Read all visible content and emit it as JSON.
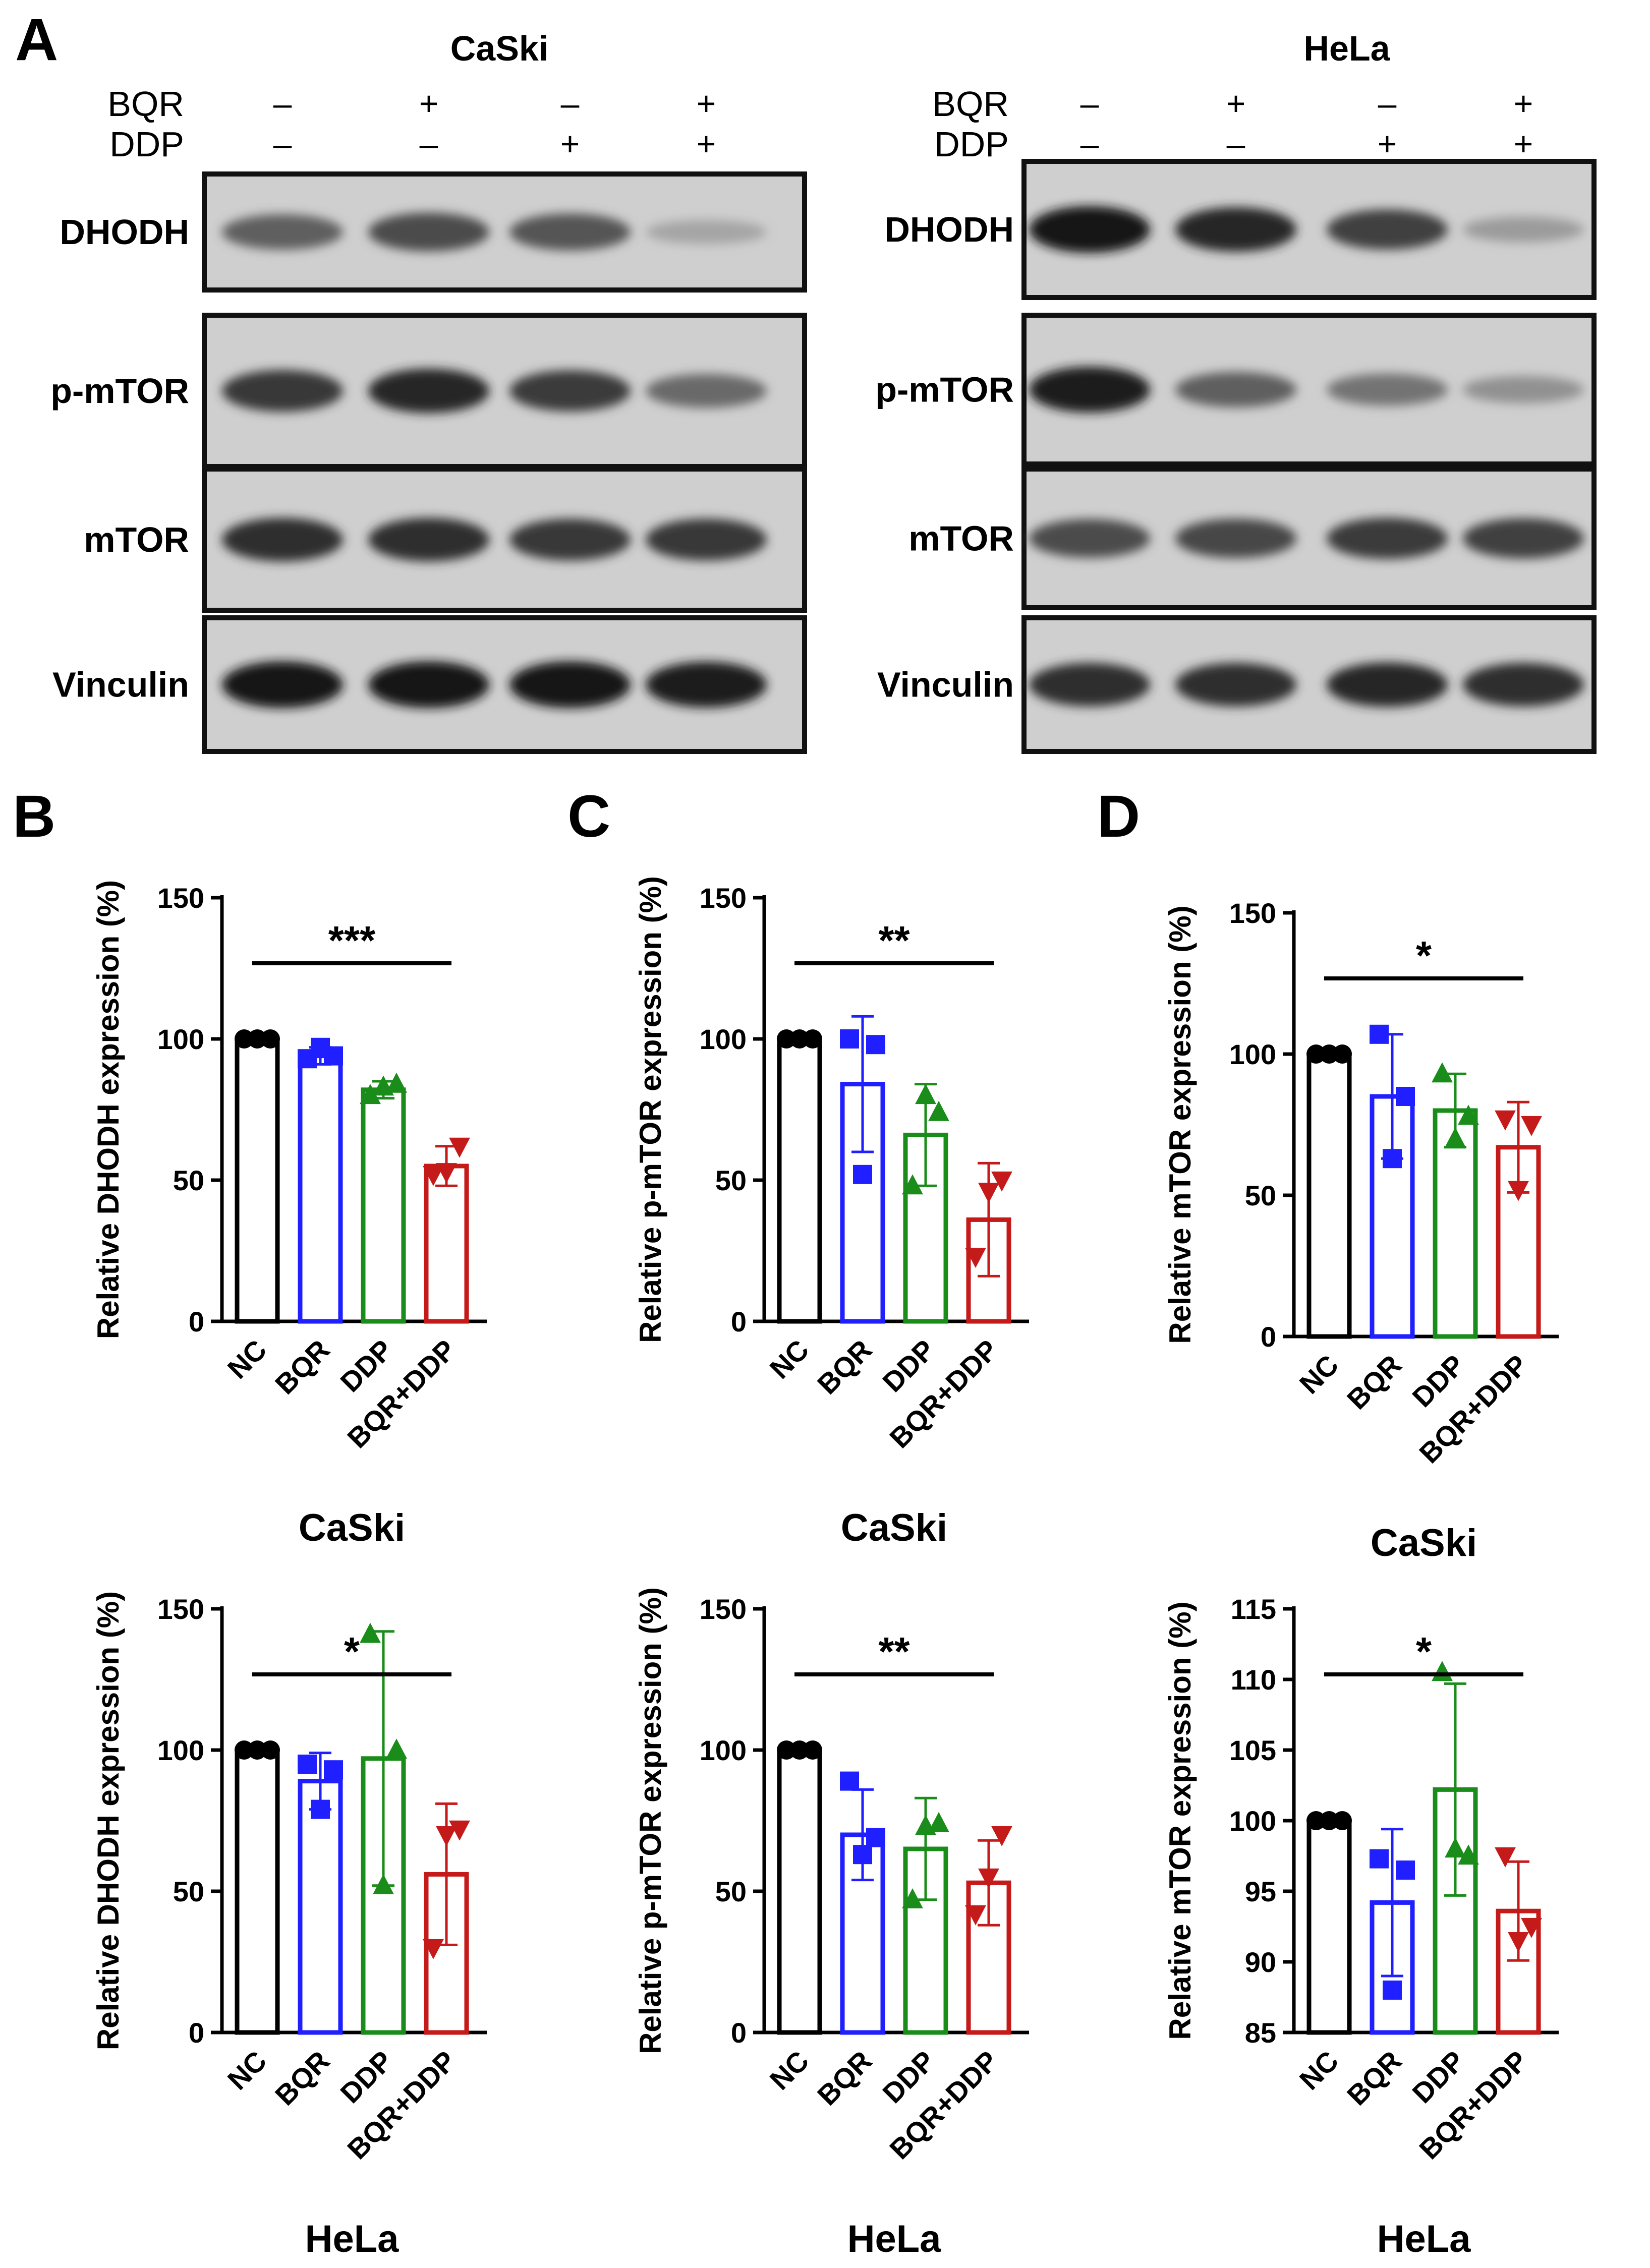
{
  "panel_labels": {
    "a": "A",
    "b": "B",
    "c": "C",
    "d": "D"
  },
  "western_blot": {
    "row_labels": {
      "bqr": "BQR",
      "ddp": "DDP"
    },
    "panels": [
      {
        "cell_line": "CaSki",
        "bqr": [
          "–",
          "+",
          "–",
          "+"
        ],
        "ddp": [
          "–",
          "–",
          "+",
          "+"
        ],
        "bands": [
          {
            "label": "DHODH",
            "intensity": [
              0.6,
              0.7,
              0.65,
              0.25
            ]
          },
          {
            "label": "p-mTOR",
            "intensity": [
              0.8,
              0.88,
              0.78,
              0.55
            ]
          },
          {
            "label": "mTOR",
            "intensity": [
              0.85,
              0.85,
              0.8,
              0.8
            ]
          },
          {
            "label": "Vinculin",
            "intensity": [
              0.95,
              0.95,
              0.95,
              0.92
            ]
          }
        ]
      },
      {
        "cell_line": "HeLa",
        "bqr": [
          "–",
          "+",
          "–",
          "+"
        ],
        "ddp": [
          "–",
          "–",
          "+",
          "+"
        ],
        "bands": [
          {
            "label": "DHODH",
            "intensity": [
              0.95,
              0.88,
              0.75,
              0.3
            ]
          },
          {
            "label": "p-mTOR",
            "intensity": [
              0.92,
              0.6,
              0.5,
              0.35
            ]
          },
          {
            "label": "mTOR",
            "intensity": [
              0.7,
              0.72,
              0.78,
              0.75
            ]
          },
          {
            "label": "Vinculin",
            "intensity": [
              0.85,
              0.85,
              0.88,
              0.85
            ]
          }
        ]
      }
    ]
  },
  "colors": {
    "NC": "#000000",
    "BQR": "#1f1fff",
    "DDP": "#1a8c1a",
    "BQR+DDP": "#c41a1a"
  },
  "chart_data": [
    {
      "panel": "B",
      "cell_line": "CaSki",
      "type": "bar",
      "ylabel": "Relative DHODH expression (%)",
      "categories": [
        "NC",
        "BQR",
        "DDP",
        "BQR+DDP"
      ],
      "values": [
        100,
        94,
        82,
        55
      ],
      "sd": [
        0,
        3,
        3,
        7
      ],
      "points": [
        [
          100,
          100,
          100
        ],
        [
          93,
          97,
          94
        ],
        [
          80,
          83,
          84
        ],
        [
          52,
          53,
          62
        ]
      ],
      "ylim": [
        0,
        150
      ],
      "yticks": [
        0,
        50,
        100,
        150
      ],
      "significance": "***"
    },
    {
      "panel": "C",
      "cell_line": "CaSki",
      "type": "bar",
      "ylabel": "Relative p-mTOR expression (%)",
      "categories": [
        "NC",
        "BQR",
        "DDP",
        "BQR+DDP"
      ],
      "values": [
        100,
        84,
        66,
        36
      ],
      "sd": [
        0,
        24,
        18,
        20
      ],
      "points": [
        [
          100,
          100,
          100
        ],
        [
          100,
          52,
          98
        ],
        [
          48,
          80,
          74
        ],
        [
          23,
          46,
          50
        ]
      ],
      "ylim": [
        0,
        150
      ],
      "yticks": [
        0,
        50,
        100,
        150
      ],
      "significance": "**"
    },
    {
      "panel": "D",
      "cell_line": "CaSki",
      "type": "bar",
      "ylabel": "Relative mTOR expression (%)",
      "categories": [
        "NC",
        "BQR",
        "DDP",
        "BQR+DDP"
      ],
      "values": [
        100,
        85,
        80,
        67
      ],
      "sd": [
        0,
        22,
        13,
        16
      ],
      "points": [
        [
          100,
          100,
          100
        ],
        [
          107,
          63,
          85
        ],
        [
          93,
          70,
          78
        ],
        [
          77,
          52,
          75
        ]
      ],
      "ylim": [
        0,
        150
      ],
      "yticks": [
        0,
        50,
        100,
        150
      ],
      "significance": "*"
    },
    {
      "panel": "B",
      "cell_line": "HeLa",
      "type": "bar",
      "ylabel": "Relative DHODH expression (%)",
      "categories": [
        "NC",
        "BQR",
        "DDP",
        "BQR+DDP"
      ],
      "values": [
        100,
        89,
        97,
        56
      ],
      "sd": [
        0,
        10,
        45,
        25
      ],
      "points": [
        [
          100,
          100,
          100
        ],
        [
          95,
          79,
          93
        ],
        [
          141,
          52,
          100
        ],
        [
          30,
          70,
          72
        ]
      ],
      "ylim": [
        0,
        150
      ],
      "yticks": [
        0,
        50,
        100,
        150
      ],
      "significance": "*"
    },
    {
      "panel": "C",
      "cell_line": "HeLa",
      "type": "bar",
      "ylabel": "Relative p-mTOR expression (%)",
      "categories": [
        "NC",
        "BQR",
        "DDP",
        "BQR+DDP"
      ],
      "values": [
        100,
        70,
        65,
        53
      ],
      "sd": [
        0,
        16,
        18,
        15
      ],
      "points": [
        [
          100,
          100,
          100
        ],
        [
          89,
          63,
          69
        ],
        [
          47,
          73,
          74
        ],
        [
          42,
          55,
          70
        ]
      ],
      "ylim": [
        0,
        150
      ],
      "yticks": [
        0,
        50,
        100,
        150
      ],
      "significance": "**"
    },
    {
      "panel": "D",
      "cell_line": "HeLa",
      "type": "bar",
      "ylabel": "Relative mTOR expression (%)",
      "categories": [
        "NC",
        "BQR",
        "DDP",
        "BQR+DDP"
      ],
      "values": [
        100,
        94.2,
        102.2,
        93.6
      ],
      "sd": [
        0,
        5.2,
        7.5,
        3.5
      ],
      "points": [
        [
          100,
          100,
          100
        ],
        [
          97.3,
          88,
          96.5
        ],
        [
          110.5,
          98,
          97.5
        ],
        [
          97.5,
          91.5,
          92.5
        ]
      ],
      "ylim": [
        85,
        115
      ],
      "yticks": [
        85,
        90,
        95,
        100,
        105,
        110,
        115
      ],
      "significance": "*"
    }
  ]
}
